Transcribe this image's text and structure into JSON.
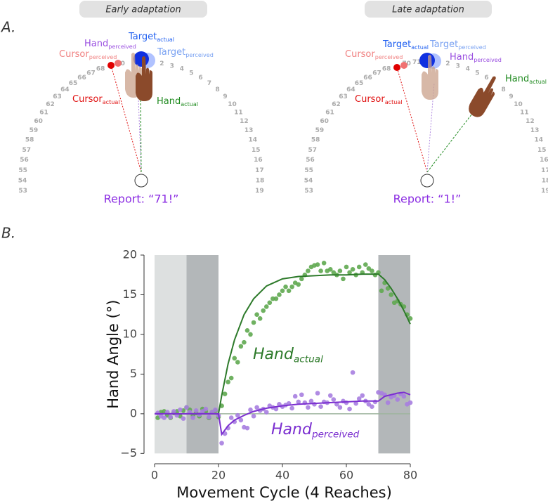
{
  "panel_labels": [
    "A.",
    "B."
  ],
  "diagrams": [
    {
      "title": "Early adaptation",
      "arc_numbers": [
        53,
        54,
        55,
        56,
        57,
        58,
        59,
        60,
        61,
        62,
        63,
        64,
        65,
        66,
        67,
        68,
        70,
        2,
        3,
        4,
        5,
        6,
        7,
        8,
        9,
        10,
        11,
        12,
        13,
        14,
        15,
        16,
        17,
        18,
        19
      ],
      "labels": {
        "target_actual": {
          "text": "Target",
          "sub": "actual",
          "color": "#1f5ff0"
        },
        "target_perceived": {
          "text": "Target",
          "sub": "perceived",
          "color": "#7aa2f2"
        },
        "hand_perceived": {
          "text": "Hand",
          "sub": "perceived",
          "color": "#9a4fe0"
        },
        "cursor_perceived": {
          "text": "Cursor",
          "sub": "perceived",
          "color": "#f08080"
        },
        "cursor_actual": {
          "text": "Cursor",
          "sub": "actual",
          "color": "#e01010"
        },
        "hand_actual": {
          "text": "Hand",
          "sub": "actual",
          "color": "#1f8a1f"
        }
      },
      "report": "Report:  “71!”"
    },
    {
      "title": "Late adaptation",
      "arc_numbers": [
        53,
        54,
        55,
        56,
        57,
        58,
        59,
        60,
        61,
        62,
        63,
        64,
        65,
        66,
        67,
        68,
        70,
        71,
        2,
        3,
        4,
        5,
        6,
        8,
        9,
        10,
        11,
        12,
        13,
        14,
        15,
        16,
        17,
        18,
        19
      ],
      "labels": {
        "target_actual": {
          "text": "Target",
          "sub": "actual",
          "color": "#1f5ff0"
        },
        "target_perceived": {
          "text": "Target",
          "sub": "perceived",
          "color": "#7aa2f2"
        },
        "hand_perceived": {
          "text": "Hand",
          "sub": "perceived",
          "color": "#9a4fe0"
        },
        "cursor_perceived": {
          "text": "Cursor",
          "sub": "perceived",
          "color": "#f08080"
        },
        "cursor_actual": {
          "text": "Cursor",
          "sub": "actual",
          "color": "#e01010"
        },
        "hand_actual": {
          "text": "Hand",
          "sub": "actual",
          "color": "#1f8a1f"
        }
      },
      "report": "Report:  “1!”"
    }
  ],
  "chart_data": {
    "type": "scatter",
    "x_label": "Movement Cycle (4 Reaches)",
    "y_label": "Hand Angle (°)",
    "xlim": [
      -3.3,
      80
    ],
    "ylim": [
      -6.3,
      20
    ],
    "xticks": [
      0,
      20,
      40,
      60,
      80
    ],
    "yticks": [
      {
        "value": -5,
        "label": "−5"
      },
      0,
      5,
      10,
      15,
      20
    ],
    "shaded_regions": [
      {
        "x": [
          0,
          10
        ],
        "color": "#dde0e0"
      },
      {
        "x": [
          10,
          20
        ],
        "color": "#b3b7b9"
      },
      {
        "x": [
          70,
          80
        ],
        "color": "#b3b7b9"
      }
    ],
    "reference_line": {
      "y": 0,
      "color": "#9fb59f"
    },
    "x": [
      1,
      2,
      3,
      4,
      5,
      6,
      7,
      8,
      9,
      10,
      11,
      12,
      13,
      14,
      15,
      16,
      17,
      18,
      19,
      20,
      21,
      22,
      23,
      24,
      25,
      26,
      27,
      28,
      29,
      30,
      31,
      32,
      33,
      34,
      35,
      36,
      37,
      38,
      39,
      40,
      41,
      42,
      43,
      44,
      45,
      46,
      47,
      48,
      49,
      50,
      51,
      52,
      53,
      54,
      55,
      56,
      57,
      58,
      59,
      60,
      61,
      62,
      63,
      64,
      65,
      66,
      67,
      68,
      69,
      70,
      71,
      72,
      73,
      74,
      75,
      76,
      77,
      78,
      79,
      80
    ],
    "series": [
      {
        "color": "#5fa850",
        "values": [
          -0.5,
          0.2,
          0.3,
          -0.2,
          -0.5,
          0.1,
          0.3,
          -0.3,
          0.4,
          0.8,
          0.5,
          -0.2,
          0.1,
          -0.3,
          0.6,
          0.3,
          -0.5,
          0.2,
          0.4,
          -0.4,
          1.0,
          2.5,
          4,
          4.5,
          7,
          6.5,
          8.5,
          9,
          10.5,
          10,
          11.5,
          12.5,
          12,
          13,
          13.5,
          14,
          14.5,
          14.5,
          15,
          15.5,
          16,
          15.5,
          16,
          16.5,
          16.3,
          17,
          17.5,
          18,
          18.5,
          18.7,
          18.8,
          18,
          19,
          18,
          18.2,
          17.8,
          17.5,
          18,
          17,
          18.5,
          17.8,
          18.2,
          17.5,
          18.5,
          17.8,
          18.8,
          18.3,
          18,
          17.5,
          17.8,
          15.5,
          16.5,
          15.8,
          15,
          14,
          14.2,
          13.8,
          13.5,
          12.5,
          12
        ]
      },
      {
        "color": "#a77ee0",
        "values": [
          0.1,
          -0.3,
          -0.5,
          0.2,
          -0.4,
          0.3,
          -0.2,
          0.5,
          -0.6,
          0.8,
          0.2,
          -0.5,
          0.4,
          -0.1,
          0.3,
          0.6,
          -0.4,
          0.2,
          0.5,
          -0.2,
          -3.7,
          -2.5,
          -1.8,
          -0.5,
          -1,
          -0.2,
          -0.8,
          -1.7,
          -1.8,
          0.5,
          -0.3,
          0.8,
          0.4,
          0.6,
          0.2,
          1,
          0.8,
          0.6,
          1.2,
          0.9,
          1.1,
          1.3,
          0.7,
          2.2,
          1.5,
          2.4,
          1.4,
          0.8,
          1.6,
          1.2,
          2.6,
          0.9,
          1.5,
          1.4,
          2.3,
          1.8,
          1.2,
          0.8,
          1.6,
          1.4,
          0.6,
          5.2,
          1.3,
          1.9,
          2.3,
          1.6,
          1.2,
          0.9,
          1.5,
          2.7,
          2.6,
          2.4,
          1.4,
          2.1,
          2.3,
          1.8,
          2.5,
          2.2,
          1.2,
          1.4
        ]
      }
    ],
    "fit_lines": {
      "x": [
        0,
        20,
        21,
        23,
        25,
        28,
        31,
        35,
        40,
        45,
        50,
        55,
        60,
        65,
        70,
        72,
        74,
        76,
        78,
        80
      ],
      "series": [
        {
          "color": "#2d7a2a",
          "values": [
            0,
            0,
            2.3,
            6.3,
            9.3,
            12.5,
            14.5,
            16.1,
            17.0,
            17.3,
            17.4,
            17.5,
            17.5,
            17.6,
            17.6,
            16.9,
            15.8,
            14.5,
            13.0,
            11.3
          ]
        },
        {
          "color": "#7b2fd0",
          "values": [
            0,
            0,
            -2.6,
            -1.5,
            -0.8,
            -0.2,
            0.3,
            0.7,
            1.0,
            1.2,
            1.3,
            1.4,
            1.5,
            1.6,
            1.6,
            2.2,
            2.4,
            2.6,
            2.7,
            2.4
          ]
        }
      ]
    },
    "annotations": [
      {
        "text": "Hand",
        "sub": "actual",
        "color": "#2d7a2a"
      },
      {
        "text": "Hand",
        "sub": "perceived",
        "color": "#7b2fd0"
      }
    ]
  }
}
